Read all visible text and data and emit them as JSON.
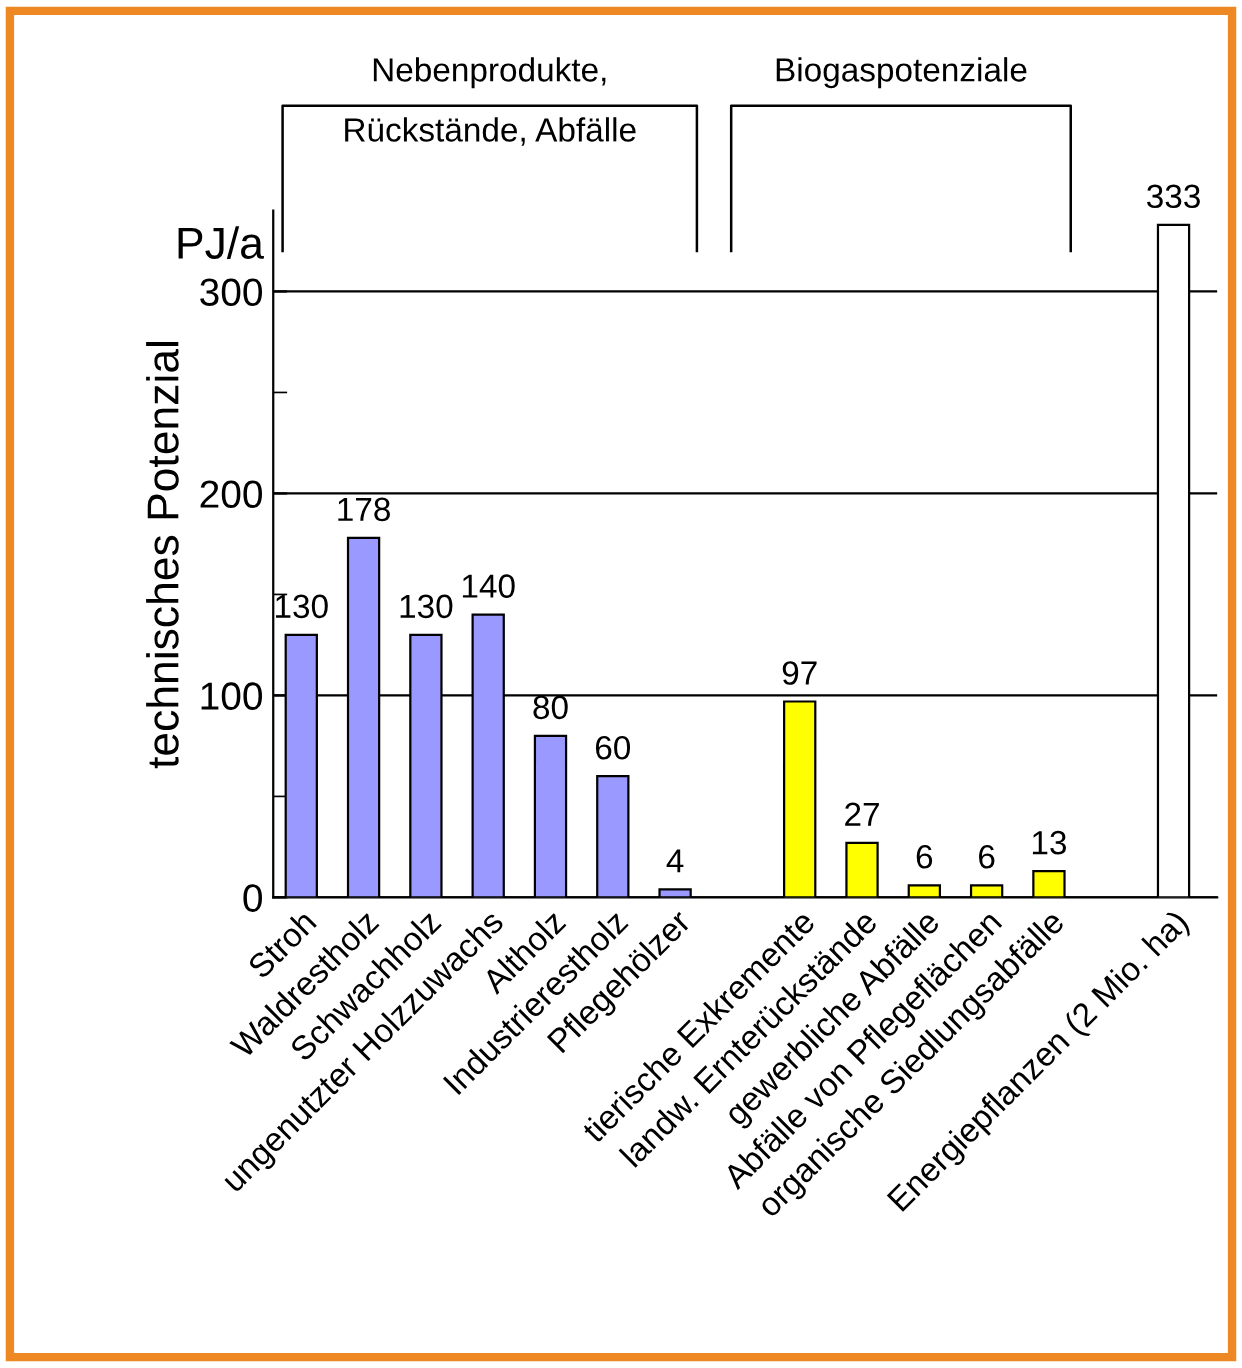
{
  "chart_data": {
    "type": "bar",
    "categories": [
      "Stroh",
      "Waldrestholz",
      "Schwachholz",
      "ungenutzter Holzzuwachs",
      "Altholz",
      "Industrierestholz",
      "Pflegehölzer",
      null,
      "tierische Exkremente",
      "landw. Ernterückstände",
      "gewerbliche Abfälle",
      "Abfälle von Pflegeflächen",
      "organische Siedlungsabfälle",
      null,
      "Energiepflanzen (2 Mio. ha)"
    ],
    "series": [
      {
        "color": "#9999ff",
        "values": [
          130,
          178,
          130,
          140,
          80,
          60,
          4,
          null,
          null,
          null,
          null,
          null,
          null,
          null,
          null
        ]
      },
      {
        "color": "#ffff00",
        "values": [
          null,
          null,
          null,
          null,
          null,
          null,
          null,
          null,
          97,
          27,
          6,
          6,
          13,
          null,
          null
        ]
      },
      {
        "color": "#ffffff",
        "values": [
          null,
          null,
          null,
          null,
          null,
          null,
          null,
          null,
          null,
          null,
          null,
          null,
          null,
          null,
          333
        ]
      }
    ],
    "ylabel": "technisches Potenzial",
    "annotations": [
      "Nebenprodukte,\nRückstände, Abfälle",
      "Biogaspotenziale",
      "PJ/a"
    ],
    "ylim": [
      0,
      340
    ],
    "yticks": [
      0,
      {
        "value": 50,
        "label": null
      },
      100,
      {
        "value": 150,
        "label": null
      },
      200,
      {
        "value": 250,
        "label": null
      },
      300
    ],
    "grid": "y",
    "data_labels": true,
    "legend": false
  }
}
